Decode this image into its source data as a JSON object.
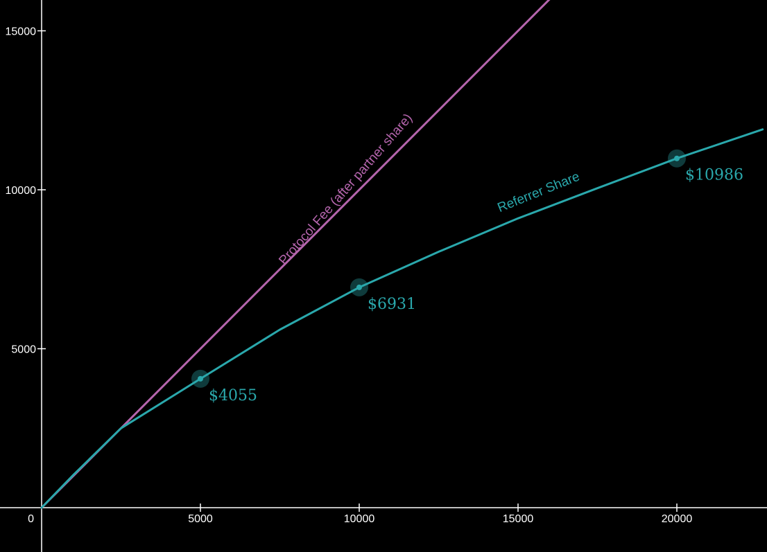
{
  "chart_data": {
    "type": "line",
    "title": "",
    "xlabel": "",
    "ylabel": "",
    "xlim": [
      0,
      22700
    ],
    "ylim": [
      -1400,
      16000
    ],
    "grid": false,
    "x_ticks": [
      5000,
      10000,
      15000,
      20000
    ],
    "y_ticks": [
      5000,
      10000,
      15000
    ],
    "origin_label": "0",
    "series": [
      {
        "name": "Protocol Fee (after partner share)",
        "color": "#b565ad",
        "x": [
          0,
          16000
        ],
        "y": [
          0,
          16000
        ]
      },
      {
        "name": "Referrer Share",
        "color": "#2aa8ac",
        "x": [
          0,
          1000,
          2500,
          5000,
          7500,
          10000,
          12500,
          15000,
          17500,
          20000,
          22700
        ],
        "y": [
          0,
          1030,
          2500,
          4055,
          5600,
          6931,
          8050,
          9100,
          10050,
          10986,
          11900
        ]
      }
    ],
    "highlight_points": [
      {
        "x": 5000,
        "y": 4055,
        "label": "$4055"
      },
      {
        "x": 10000,
        "y": 6931,
        "label": "$6931"
      },
      {
        "x": 20000,
        "y": 10986,
        "label": "$10986"
      }
    ],
    "curve_labels": [
      {
        "text": "Protocol Fee (after partner share)",
        "series": 0,
        "at_x": 9800,
        "at_y": 9800
      },
      {
        "text": "Referrer Share",
        "series": 1,
        "at_x": 16000,
        "at_y": 9500
      }
    ]
  }
}
